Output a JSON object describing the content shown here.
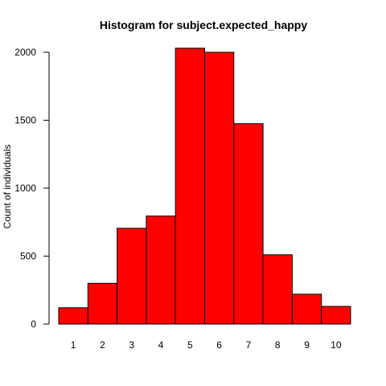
{
  "chart_data": {
    "type": "bar",
    "title": "Histogram for subject.expected_happy",
    "xlabel": "",
    "ylabel": "Count of individuals",
    "categories": [
      "1",
      "2",
      "3",
      "4",
      "5",
      "6",
      "7",
      "8",
      "9",
      "10"
    ],
    "values": [
      120,
      300,
      705,
      795,
      2030,
      2000,
      1475,
      510,
      220,
      130
    ],
    "ylim": [
      0,
      2000
    ],
    "yticks": [
      0,
      500,
      1000,
      1500,
      2000
    ],
    "bar_color": "#ff0000",
    "bar_border_color": "#000000",
    "grid": false,
    "legend": "none"
  }
}
